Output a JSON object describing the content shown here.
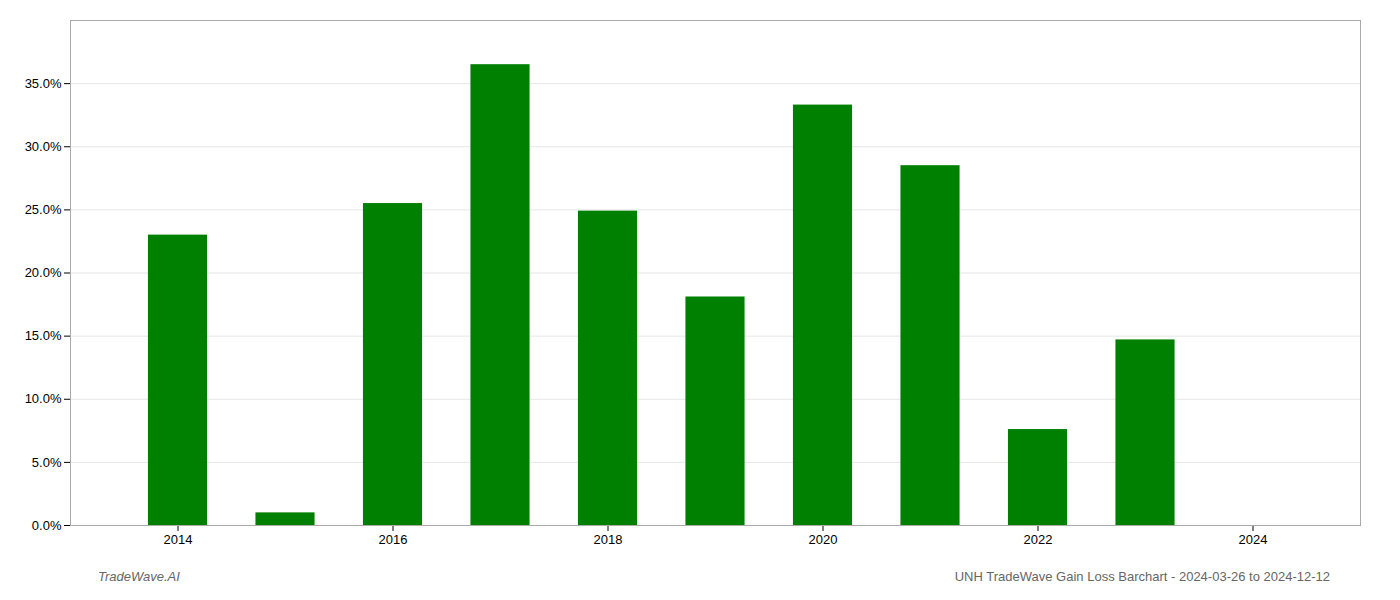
{
  "chart_data": {
    "type": "bar",
    "x": [
      2014,
      2015,
      2016,
      2017,
      2018,
      2019,
      2020,
      2021,
      2022,
      2023
    ],
    "values": [
      0.23,
      0.01,
      0.255,
      0.365,
      0.249,
      0.181,
      0.333,
      0.285,
      0.076,
      0.147
    ],
    "color": "#008000",
    "xlim": [
      2013.0,
      2025.0
    ],
    "xticks": [
      2014,
      2016,
      2018,
      2020,
      2022,
      2024
    ],
    "ylim": [
      0,
      0.4
    ],
    "yticks": [
      {
        "value": 0.0,
        "label": "0.0%"
      },
      {
        "value": 0.05,
        "label": "5.0%"
      },
      {
        "value": 0.1,
        "label": "10.0%"
      },
      {
        "value": 0.15,
        "label": "15.0%"
      },
      {
        "value": 0.2,
        "label": "20.0%"
      },
      {
        "value": 0.25,
        "label": "25.0%"
      },
      {
        "value": 0.3,
        "label": "30.0%"
      },
      {
        "value": 0.35,
        "label": "35.0%"
      }
    ],
    "grid": true,
    "annotations": [
      "TradeWave.AI",
      "UNH TradeWave Gain Loss Barchart - 2024-03-26 to 2024-12-12"
    ]
  }
}
